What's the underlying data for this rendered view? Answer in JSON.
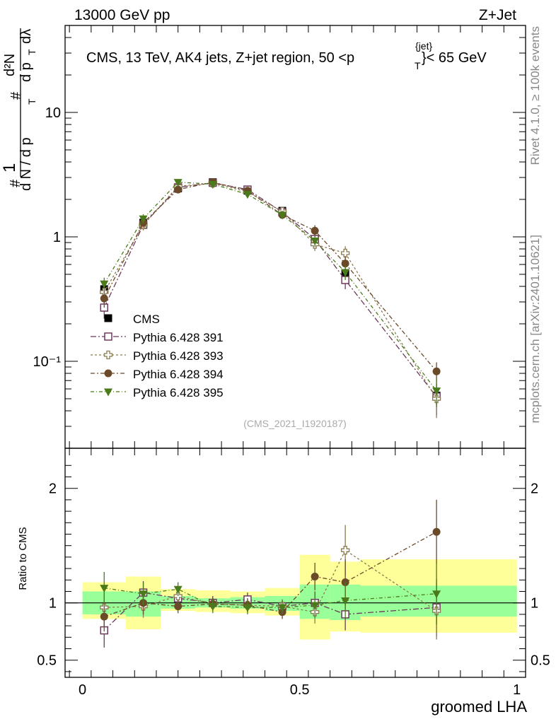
{
  "header": {
    "left": "13000 GeV pp",
    "right": "Z+Jet"
  },
  "side_labels": {
    "rivet": "Rivet 4.1.0, ≥ 100k events",
    "mcplots": "mcplots.cern.ch [arXiv:2401.10621]"
  },
  "chart_data": [
    {
      "type": "scatter",
      "title": "CMS, 13 TeV, AK4 jets, Z+jet region, 50 <p",
      "title_sup": "{jet}",
      "title_sub": "T",
      "title_tail": "}< 65 GeV",
      "ylabel": "1/dN/dp_T  d²N/dp_T dλ",
      "ylabel_parts": [
        "#",
        "1",
        "d N / d p",
        "T",
        "#",
        "d²N",
        "d p",
        "T",
        "dλ"
      ],
      "yscale": "log",
      "ylim": [
        0.02,
        50
      ],
      "xlim": [
        -0.04,
        1.02
      ],
      "ytick_labels": [
        "10⁻¹",
        "1",
        "10"
      ],
      "ytick_values": [
        0.1,
        1,
        10
      ],
      "watermark": "(CMS_2021_I1920187)",
      "x": [
        0.05,
        0.14,
        0.22,
        0.3,
        0.38,
        0.46,
        0.535,
        0.605,
        0.815
      ],
      "series": [
        {
          "name": "CMS",
          "marker": "filled-square",
          "color": "#000000",
          "values": [
            0.38,
            1.3,
            2.45,
            2.75,
            2.35,
            1.62,
            0.95,
            0.51,
            0.053
          ],
          "errors": [
            0.04,
            0.1,
            0.12,
            0.1,
            0.1,
            0.08,
            0.06,
            0.05,
            0.008
          ]
        },
        {
          "name": "Pythia 6.428 391",
          "marker": "open-square",
          "color": "#6b3a5a",
          "values": [
            0.27,
            1.25,
            2.5,
            2.72,
            2.4,
            1.58,
            0.96,
            0.45,
            0.052
          ],
          "errors": [
            0.05,
            0.12,
            0.15,
            0.12,
            0.12,
            0.1,
            0.1,
            0.07,
            0.015
          ]
        },
        {
          "name": "Pythia 6.428 393",
          "marker": "open-cross",
          "color": "#8a7a50",
          "values": [
            0.36,
            1.25,
            2.55,
            2.7,
            2.3,
            1.6,
            0.87,
            0.74,
            0.05
          ],
          "errors": [
            0.05,
            0.12,
            0.15,
            0.12,
            0.12,
            0.1,
            0.1,
            0.1,
            0.015
          ]
        },
        {
          "name": "Pythia 6.428 394",
          "marker": "filled-circle",
          "color": "#6b4a2a",
          "values": [
            0.32,
            1.3,
            2.4,
            2.75,
            2.35,
            1.5,
            1.12,
            0.61,
            0.083
          ],
          "errors": [
            0.05,
            0.12,
            0.15,
            0.12,
            0.12,
            0.1,
            0.12,
            0.09,
            0.015
          ]
        },
        {
          "name": "Pythia 6.428 395",
          "marker": "filled-triangle-down",
          "color": "#4a7a1a",
          "values": [
            0.42,
            1.4,
            2.75,
            2.65,
            2.2,
            1.5,
            0.93,
            0.52,
            0.058
          ],
          "errors": [
            0.05,
            0.12,
            0.15,
            0.12,
            0.12,
            0.1,
            0.1,
            0.07,
            0.015
          ]
        }
      ]
    },
    {
      "type": "scatter",
      "ylabel": "Ratio to CMS",
      "xlabel": "groomed LHA",
      "ylim": [
        0.35,
        2.35
      ],
      "xlim": [
        -0.04,
        1.02
      ],
      "ytick_labels": [
        "0.5",
        "1",
        "2"
      ],
      "ytick_values": [
        0.5,
        1,
        2
      ],
      "xtick_labels": [
        "0",
        "0.5",
        "1"
      ],
      "xtick_values": [
        0,
        0.5,
        1
      ],
      "bands": {
        "edges": [
          0,
          0.1,
          0.18,
          0.26,
          0.34,
          0.42,
          0.5,
          0.57,
          0.64,
          1.0
        ],
        "green": [
          [
            0.9,
            1.1
          ],
          [
            0.88,
            1.1
          ],
          [
            0.95,
            1.06
          ],
          [
            0.96,
            1.04
          ],
          [
            0.95,
            1.05
          ],
          [
            0.93,
            1.06
          ],
          [
            0.86,
            1.16
          ],
          [
            0.85,
            1.16
          ],
          [
            0.88,
            1.15
          ]
        ],
        "yellow": [
          [
            0.86,
            1.18
          ],
          [
            0.77,
            1.23
          ],
          [
            0.93,
            1.12
          ],
          [
            0.92,
            1.11
          ],
          [
            0.91,
            1.1
          ],
          [
            0.89,
            1.13
          ],
          [
            0.68,
            1.42
          ],
          [
            0.75,
            1.36
          ],
          [
            0.74,
            1.38
          ]
        ]
      },
      "series": [
        {
          "name": "Pythia 6.428 391",
          "values": [
            0.76,
            1.09,
            1.04,
            1.0,
            1.03,
            0.97,
            1.0,
            0.9,
            0.96
          ],
          "errors": [
            0.15,
            0.1,
            0.06,
            0.06,
            0.06,
            0.06,
            0.1,
            0.14,
            0.25
          ]
        },
        {
          "name": "Pythia 6.428 393",
          "values": [
            0.96,
            0.97,
            1.06,
            0.99,
            0.98,
            0.97,
            0.92,
            1.46,
            0.93
          ],
          "errors": [
            0.13,
            0.1,
            0.06,
            0.06,
            0.06,
            0.06,
            0.1,
            0.22,
            0.25
          ]
        },
        {
          "name": "Pythia 6.428 394",
          "values": [
            0.88,
            1.0,
            0.97,
            0.99,
            0.98,
            0.92,
            1.23,
            1.18,
            1.62
          ],
          "errors": [
            0.13,
            0.1,
            0.06,
            0.06,
            0.06,
            0.06,
            0.12,
            0.2,
            0.28
          ]
        },
        {
          "name": "Pythia 6.428 395",
          "values": [
            1.13,
            1.08,
            1.12,
            0.97,
            0.96,
            0.96,
            0.98,
            1.02,
            1.08
          ],
          "errors": [
            0.14,
            0.1,
            0.06,
            0.06,
            0.06,
            0.06,
            0.11,
            0.16,
            0.27
          ]
        }
      ]
    }
  ]
}
